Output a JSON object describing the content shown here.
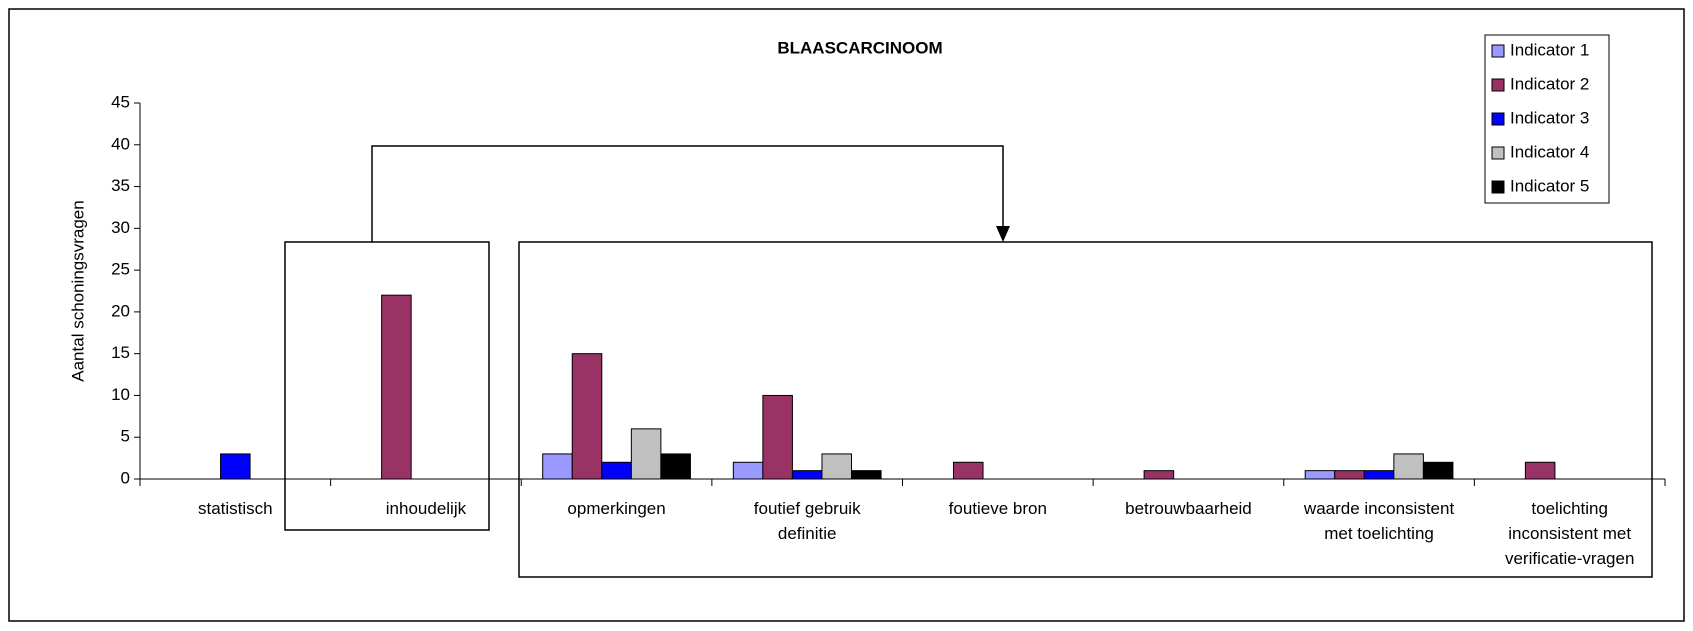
{
  "chart_data": {
    "type": "bar",
    "title": "BLAASCARCINOOM",
    "ylabel": "Aantal schoningsvragen",
    "categories": [
      "statistisch",
      "inhoudelijk",
      "opmerkingen",
      "foutief gebruik definitie",
      "foutieve bron",
      "betrouwbaarheid",
      "waarde inconsistent met toelichting",
      "toelichting inconsistent met verificatie-vragen"
    ],
    "series": [
      {
        "name": "Indicator 1",
        "color": "#9999ff",
        "values": [
          0,
          0,
          3,
          2,
          0,
          0,
          1,
          0
        ]
      },
      {
        "name": "Indicator 2",
        "color": "#993366",
        "values": [
          0,
          22,
          15,
          10,
          2,
          1,
          1,
          2
        ]
      },
      {
        "name": "Indicator 3",
        "color": "#0000ff",
        "values": [
          3,
          0,
          2,
          1,
          0,
          0,
          1,
          0
        ]
      },
      {
        "name": "Indicator 4",
        "color": "#c0c0c0",
        "values": [
          0,
          0,
          6,
          3,
          0,
          0,
          3,
          0
        ]
      },
      {
        "name": "Indicator 5",
        "color": "#000000",
        "values": [
          0,
          0,
          3,
          1,
          0,
          0,
          2,
          0
        ]
      }
    ],
    "ylim": [
      0,
      45
    ],
    "yticks": [
      0,
      5,
      10,
      15,
      20,
      25,
      30,
      35,
      40,
      45
    ],
    "legend": "top-right",
    "grid": false
  }
}
